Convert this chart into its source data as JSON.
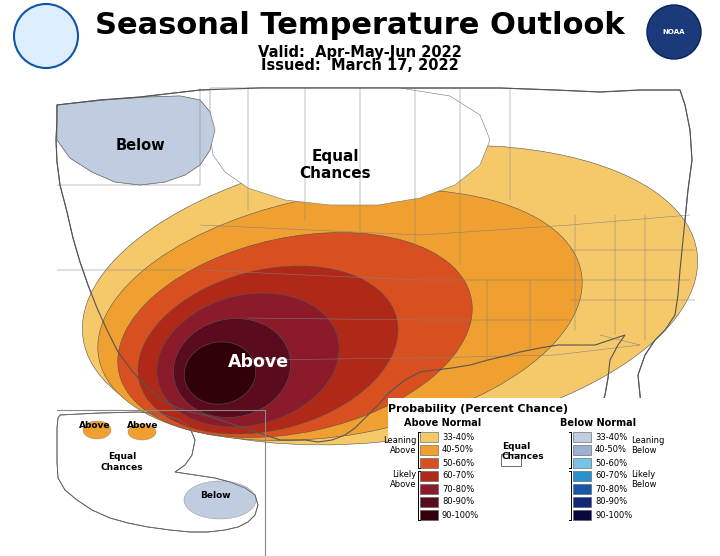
{
  "title": "Seasonal Temperature Outlook",
  "valid_line": "Valid:  Apr-May-Jun 2022",
  "issued_line": "Issued:  March 17, 2022",
  "background_color": "#ffffff",
  "legend_title": "Probability (Percent Chance)",
  "above_normal_label": "Above Normal",
  "below_normal_label": "Below Normal",
  "above_colors": [
    "#F5C86A",
    "#F0A030",
    "#D95020",
    "#B02818",
    "#8B1A2A",
    "#5A0C1E",
    "#320008"
  ],
  "below_colors": [
    "#C0CCDF",
    "#9EB0D0",
    "#78C4E8",
    "#2890CC",
    "#1858A8",
    "#102878",
    "#080840"
  ],
  "above_labels": [
    "33-40%",
    "40-50%",
    "50-60%",
    "60-70%",
    "70-80%",
    "80-90%",
    "90-100%"
  ],
  "below_labels": [
    "33-40%",
    "40-50%",
    "50-60%",
    "60-70%",
    "70-80%",
    "80-90%",
    "90-100%"
  ],
  "leaning_above": "Leaning\nAbove",
  "likely_above": "Likely\nAbove",
  "leaning_below": "Leaning\nBelow",
  "likely_below": "Likely\nBelow",
  "equal_chances": "Equal\nChances"
}
